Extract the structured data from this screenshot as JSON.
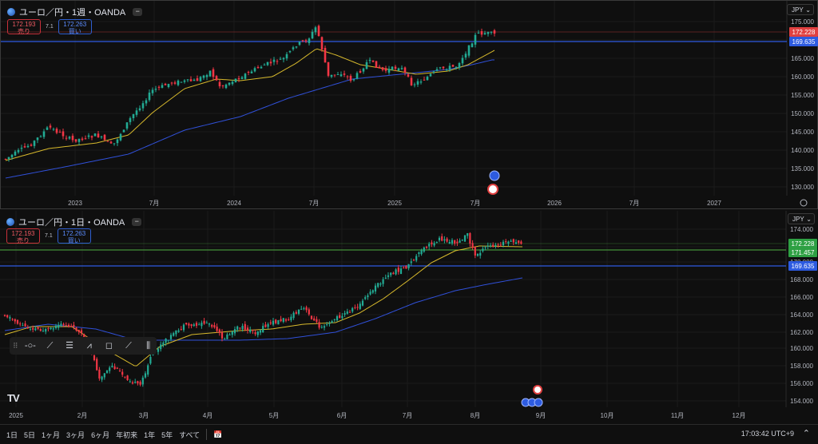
{
  "colors": {
    "up": "#22ab94",
    "down": "#f23645",
    "ma_fast": "#d6b82c",
    "ma_slow": "#3050d8",
    "level_blue": "#2d5be0",
    "level_red": "#e04040"
  },
  "top_chart": {
    "title": "ユーロ／円・1週・OANDA",
    "sell_price": "172.193",
    "sell_label": "売り",
    "buy_price": "172.263",
    "buy_label": "買い",
    "spread": "7.1",
    "currency": "JPY",
    "y_ticks": [
      "175.000",
      "170.000",
      "165.000",
      "160.000",
      "155.000",
      "150.000",
      "145.000",
      "140.000",
      "135.000",
      "130.000"
    ],
    "x_ticks": [
      "2023",
      "7月",
      "2024",
      "7月",
      "2025",
      "7月",
      "2026",
      "7月",
      "2027"
    ],
    "last_price": "172.228",
    "level_price": "169.635"
  },
  "bottom_chart": {
    "title": "ユーロ／円・1日・OANDA",
    "sell_price": "172.193",
    "sell_label": "売り",
    "buy_price": "172.263",
    "buy_label": "買い",
    "spread": "7.1",
    "currency": "JPY",
    "y_ticks": [
      "174.000",
      "172.000",
      "170.000",
      "168.000",
      "166.000",
      "164.000",
      "162.000",
      "160.000",
      "158.000",
      "156.000",
      "154.000"
    ],
    "x_ticks": [
      "2025",
      "2月",
      "3月",
      "4月",
      "5月",
      "6月",
      "7月",
      "8月",
      "9月",
      "10月",
      "11月",
      "12月"
    ],
    "last_price": "172.228",
    "green_price": "171.457",
    "level_price": "169.635"
  },
  "toolbar": {
    "icons": [
      "horizontal-line-icon",
      "trend-line-icon",
      "parallel-channel-icon",
      "path-icon",
      "rectangle-icon",
      "ray-icon",
      "bars-pattern-icon"
    ]
  },
  "bottom_bar": {
    "ranges": [
      "1日",
      "5日",
      "1ヶ月",
      "3ヶ月",
      "6ヶ月",
      "年初来",
      "1年",
      "5年",
      "すべて"
    ],
    "clock": "17:03:42 UTC+9"
  }
}
